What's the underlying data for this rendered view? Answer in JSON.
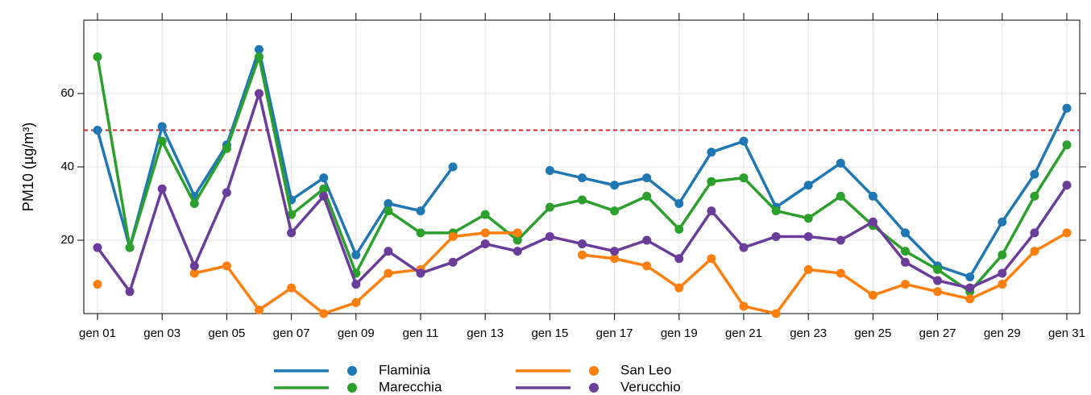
{
  "chart_data": {
    "type": "line",
    "y_label": "PM10 (µg/m³)",
    "categories": [
      "gen 01",
      null,
      "gen 03",
      null,
      "gen 05",
      null,
      "gen 07",
      null,
      "gen 09",
      null,
      "gen 11",
      null,
      "gen 13",
      null,
      "gen 15",
      null,
      "gen 17",
      null,
      "gen 19",
      null,
      "gen 21",
      null,
      "gen 23",
      null,
      "gen 25",
      null,
      "gen 27",
      null,
      "gen 29",
      null,
      "gen 31"
    ],
    "series": [
      {
        "name": "Flaminia",
        "color": "#1f77b4",
        "values": [
          50,
          18,
          51,
          32,
          46,
          72,
          31,
          37,
          16,
          30,
          28,
          40,
          null,
          null,
          39,
          37,
          35,
          37,
          30,
          44,
          47,
          29,
          35,
          41,
          32,
          22,
          13,
          10,
          25,
          38,
          56
        ]
      },
      {
        "name": "Marecchia",
        "color": "#2ca02c",
        "values": [
          70,
          18,
          47,
          30,
          45,
          70,
          27,
          34,
          11,
          28,
          22,
          22,
          27,
          20,
          29,
          31,
          28,
          32,
          23,
          36,
          37,
          28,
          26,
          32,
          24,
          17,
          12,
          6,
          16,
          32,
          46
        ]
      },
      {
        "name": "San Leo",
        "color": "#ff7f0e",
        "values": [
          8,
          null,
          null,
          11,
          13,
          1,
          7,
          0,
          3,
          11,
          12,
          21,
          22,
          22,
          null,
          16,
          15,
          13,
          7,
          15,
          2,
          0,
          12,
          11,
          5,
          8,
          6,
          4,
          8,
          17,
          22
        ]
      },
      {
        "name": "Verucchio",
        "color": "#6a3d9a",
        "values": [
          18,
          6,
          34,
          13,
          33,
          60,
          22,
          32,
          8,
          17,
          11,
          14,
          19,
          17,
          21,
          19,
          17,
          20,
          15,
          28,
          18,
          21,
          21,
          20,
          25,
          14,
          9,
          7,
          11,
          22,
          35
        ]
      }
    ],
    "ylim": [
      0,
      80
    ],
    "yticks": [
      20,
      40,
      60
    ],
    "grid": true,
    "threshold": 50,
    "threshold_color": "#d62728",
    "legend": "bottom"
  }
}
